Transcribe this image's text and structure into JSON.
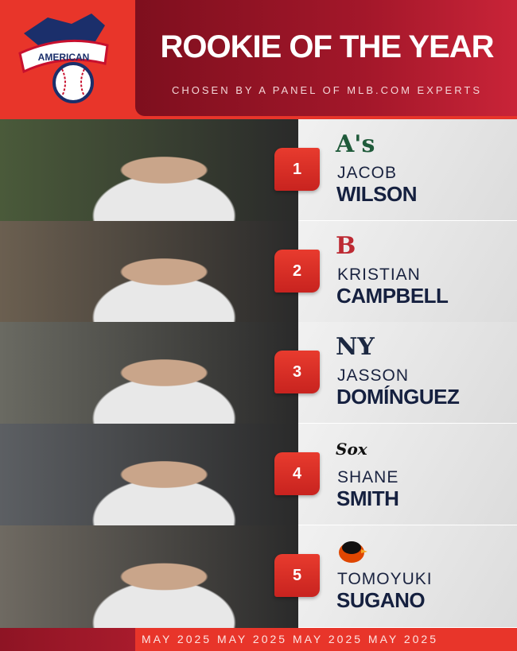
{
  "header": {
    "logo_text": "AMERICAN",
    "title": "ROOKIE OF THE YEAR",
    "subtitle": "CHOSEN BY A PANEL OF MLB.COM EXPERTS"
  },
  "rankings": [
    {
      "rank": "1",
      "team": "Athletics",
      "team_logo": "A's",
      "team_color": "#1f5a3a",
      "first": "JACOB",
      "last": "WILSON",
      "photo_tone": "#4a5a3a"
    },
    {
      "rank": "2",
      "team": "Red Sox",
      "team_logo": "B",
      "team_color": "#bd2a33",
      "first": "KRISTIAN",
      "last": "CAMPBELL",
      "photo_tone": "#6b5f50"
    },
    {
      "rank": "3",
      "team": "Yankees",
      "team_logo": "NY",
      "team_color": "#1c2841",
      "first": "JASSON",
      "last": "DOMÍNGUEZ",
      "photo_tone": "#6a6a62"
    },
    {
      "rank": "4",
      "team": "White Sox",
      "team_logo": "Sox",
      "team_color": "#111111",
      "first": "SHANE",
      "last": "SMITH",
      "photo_tone": "#5c5f63"
    },
    {
      "rank": "5",
      "team": "Orioles",
      "team_logo": "bird",
      "team_color": "#df4601",
      "first": "TOMOYUKI",
      "last": "SUGANO",
      "photo_tone": "#6f6a62"
    }
  ],
  "footer": {
    "text": "MAY 2025 MAY 2025 MAY 2025 MAY 2025"
  },
  "colors": {
    "red": "#e8352a",
    "dark_red": "#8e1424",
    "navy": "#15203f",
    "panel": "#e6e6e6"
  }
}
